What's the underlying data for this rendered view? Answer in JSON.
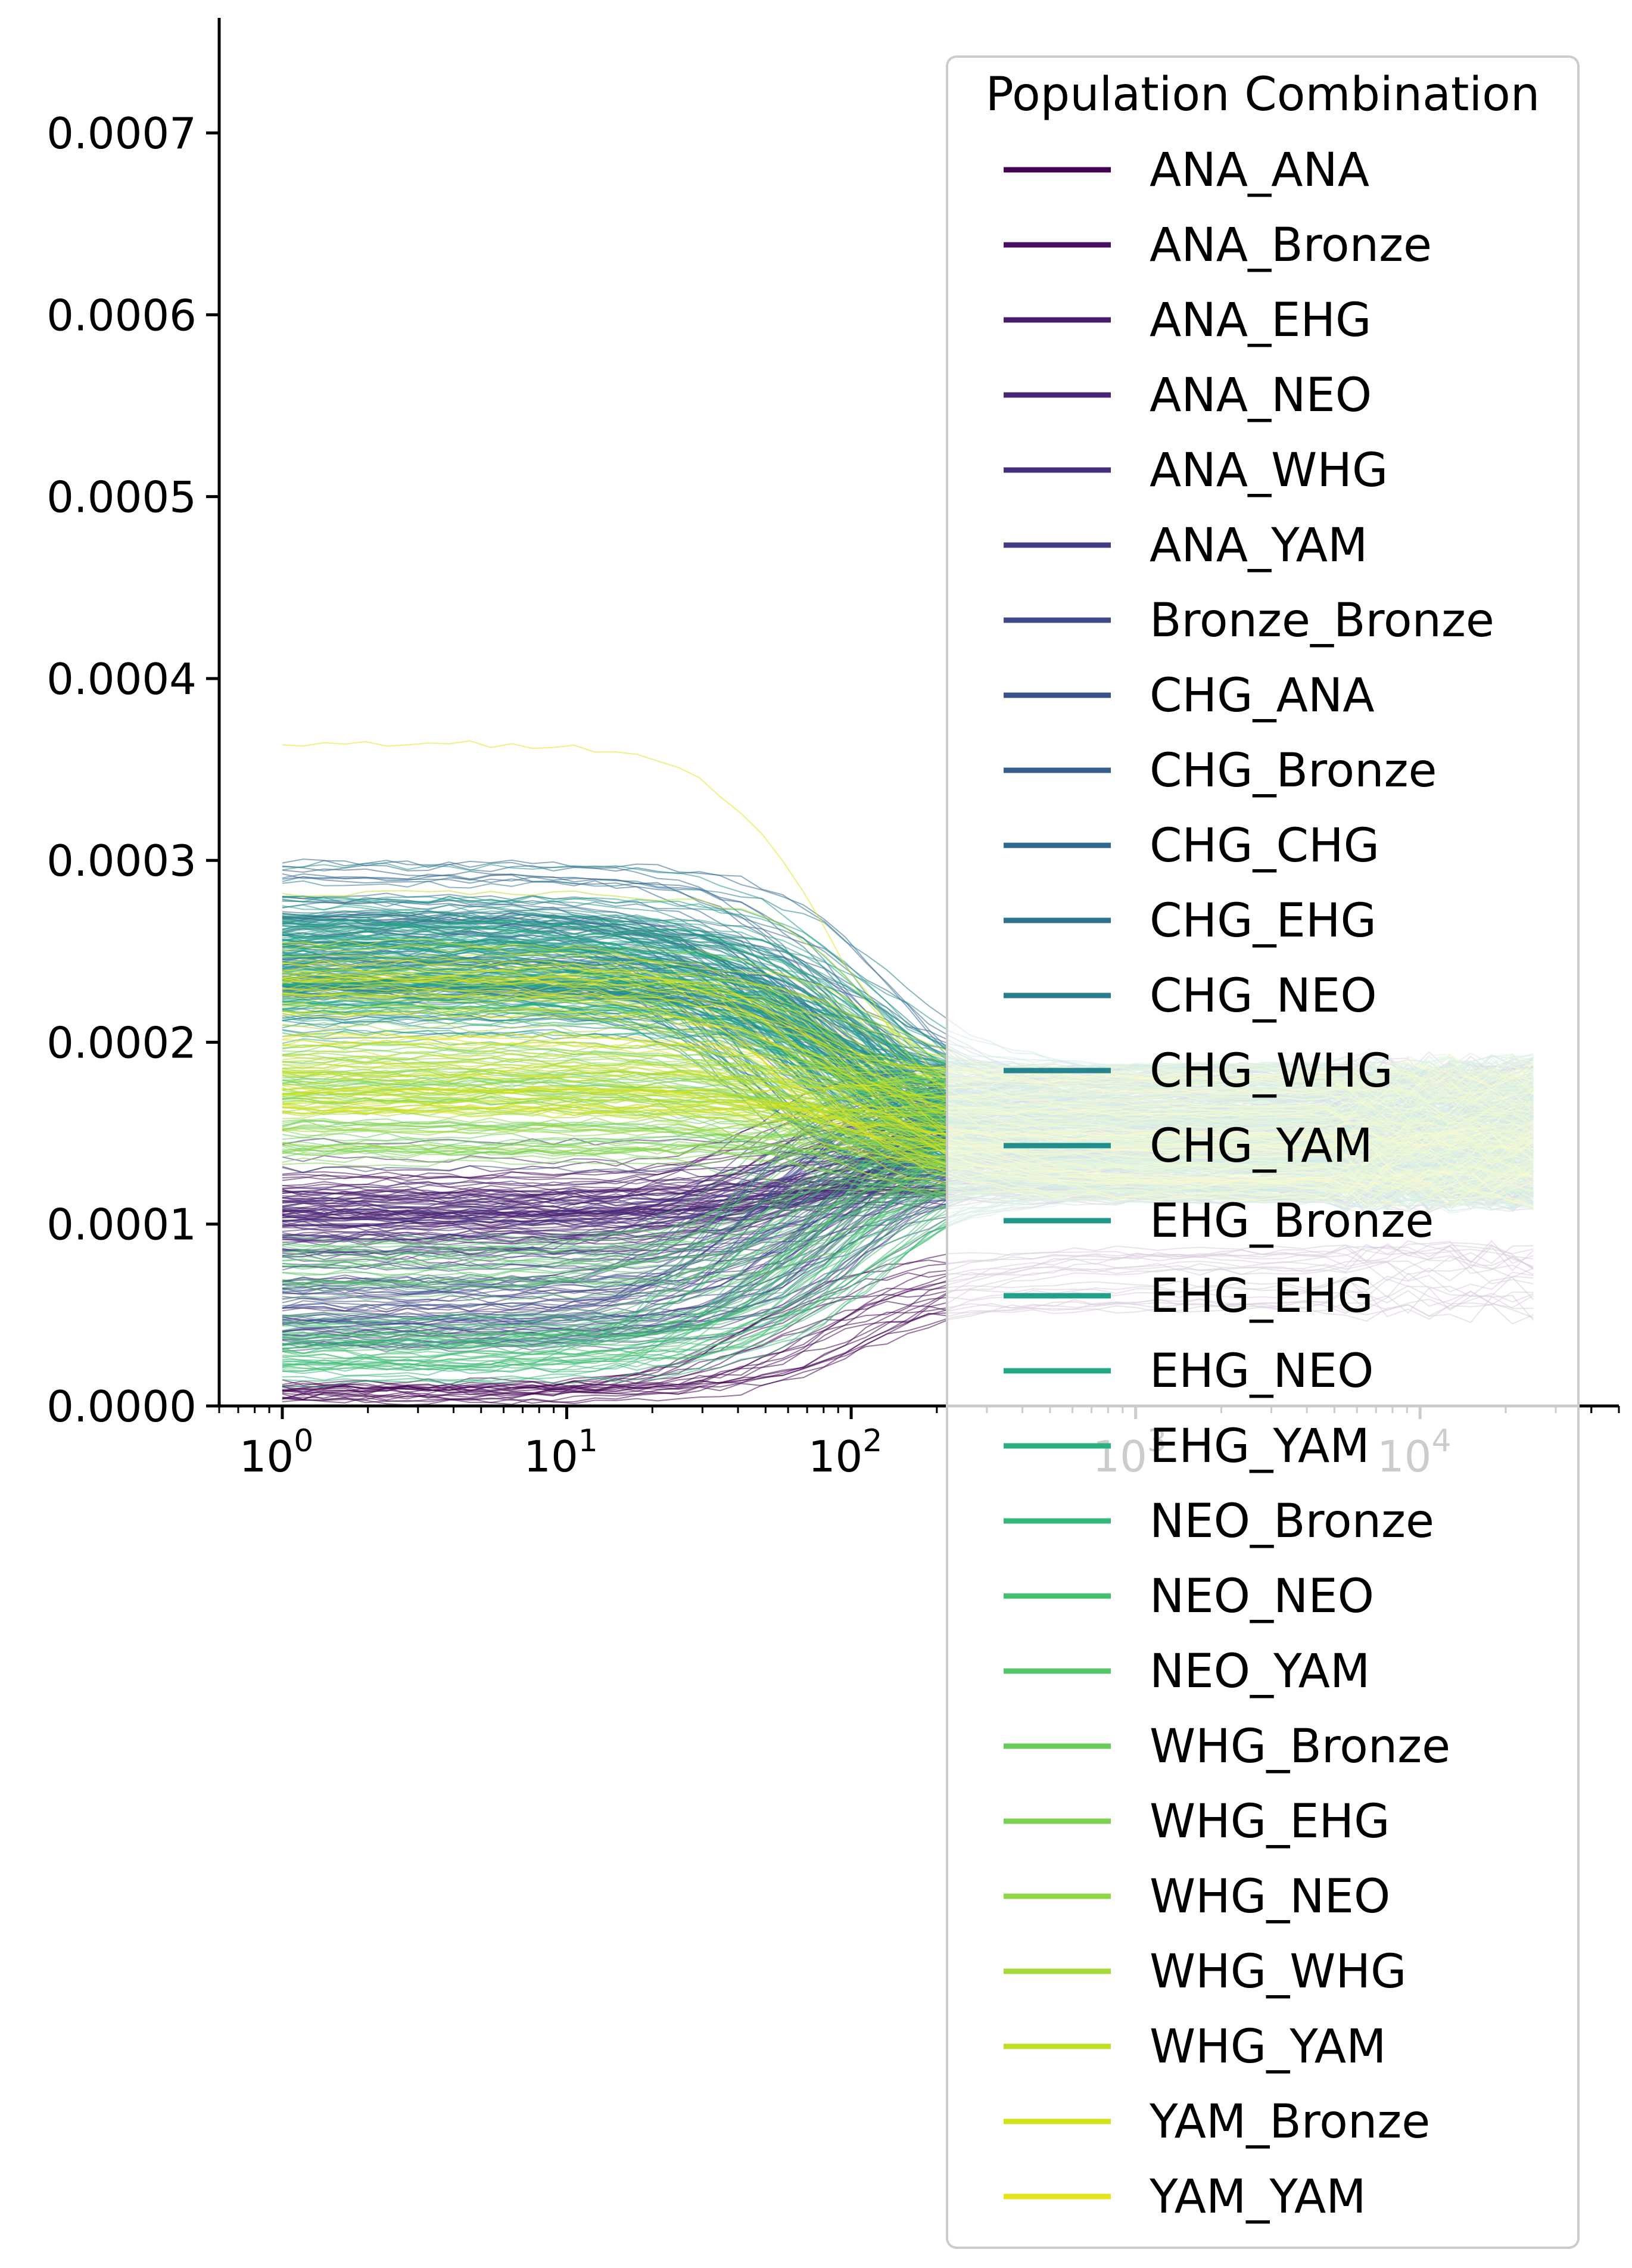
{
  "chart_data": {
    "type": "line",
    "title": "",
    "xlabel": "",
    "ylabel": "",
    "x_scale": "log",
    "xlim": [
      0.6,
      50000
    ],
    "ylim": [
      0,
      0.00076
    ],
    "grid": false,
    "x_tick_labels": [
      "10^0",
      "10^1",
      "10^2",
      "10^3",
      "10^4"
    ],
    "x_ticks": [
      1,
      10,
      100,
      1000,
      10000
    ],
    "y_ticks": [
      0,
      0.0001,
      0.0002,
      0.0003,
      0.0004,
      0.0005,
      0.0006,
      0.0007
    ],
    "y_tick_labels": [
      "0.0000",
      "0.0001",
      "0.0002",
      "0.0003",
      "0.0004",
      "0.0005",
      "0.0006",
      "0.0007"
    ],
    "legend": {
      "title": "Population Combination",
      "placement": "upper-right"
    },
    "series": [
      {
        "name": "ANA_ANA",
        "color": "#440154",
        "band": [
          2e-06,
          1.2e-05
        ],
        "end": 7e-05
      },
      {
        "name": "ANA_Bronze",
        "color": "#470e61",
        "band": [
          0.0001,
          0.00013
        ],
        "end": 0.00015
      },
      {
        "name": "ANA_EHG",
        "color": "#481b6d",
        "band": [
          9e-05,
          0.00012
        ],
        "end": 0.00015
      },
      {
        "name": "ANA_NEO",
        "color": "#482677",
        "band": [
          9e-05,
          0.00012
        ],
        "end": 0.00015
      },
      {
        "name": "ANA_WHG",
        "color": "#46307e",
        "band": [
          8e-05,
          0.00011
        ],
        "end": 0.00015
      },
      {
        "name": "ANA_YAM",
        "color": "#433d84",
        "band": [
          3e-05,
          9e-05
        ],
        "end": 0.00015
      },
      {
        "name": "Bronze_Bronze",
        "color": "#3f4889",
        "band": [
          3e-05,
          8e-05
        ],
        "end": 0.00015
      },
      {
        "name": "CHG_ANA",
        "color": "#3a528b",
        "band": [
          4e-05,
          9e-05
        ],
        "end": 0.00015
      },
      {
        "name": "CHG_Bronze",
        "color": "#355e8d",
        "band": [
          0.00022,
          0.00028
        ],
        "end": 0.00015
      },
      {
        "name": "CHG_CHG",
        "color": "#31688e",
        "band": [
          0.00024,
          0.0003
        ],
        "end": 0.00015
      },
      {
        "name": "CHG_EHG",
        "color": "#2d718e",
        "band": [
          0.00022,
          0.00027
        ],
        "end": 0.00015
      },
      {
        "name": "CHG_NEO",
        "color": "#297b8e",
        "band": [
          0.00022,
          0.00026
        ],
        "end": 0.00015
      },
      {
        "name": "CHG_WHG",
        "color": "#25848e",
        "band": [
          0.0002,
          0.00025
        ],
        "end": 0.00015
      },
      {
        "name": "CHG_YAM",
        "color": "#218e8d",
        "band": [
          0.00021,
          0.00026
        ],
        "end": 0.00015
      },
      {
        "name": "EHG_Bronze",
        "color": "#1f978b",
        "band": [
          0.00022,
          0.00027
        ],
        "end": 0.00015
      },
      {
        "name": "EHG_EHG",
        "color": "#1fa088",
        "band": [
          0.00022,
          0.00028
        ],
        "end": 0.00015
      },
      {
        "name": "EHG_NEO",
        "color": "#22a884",
        "band": [
          0.00021,
          0.00027
        ],
        "end": 0.00015
      },
      {
        "name": "EHG_YAM",
        "color": "#2ab07f",
        "band": [
          0.0002,
          0.00026
        ],
        "end": 0.00015
      },
      {
        "name": "NEO_Bronze",
        "color": "#35b779",
        "band": [
          1e-05,
          4e-05
        ],
        "end": 0.00015
      },
      {
        "name": "NEO_NEO",
        "color": "#44bf70",
        "band": [
          2e-05,
          5e-05
        ],
        "end": 0.00015
      },
      {
        "name": "NEO_YAM",
        "color": "#54c568",
        "band": [
          6e-05,
          9e-05
        ],
        "end": 0.00015
      },
      {
        "name": "WHG_Bronze",
        "color": "#67cc5c",
        "band": [
          0.00014,
          0.0002
        ],
        "end": 0.00015
      },
      {
        "name": "WHG_EHG",
        "color": "#7ad151",
        "band": [
          0.00012,
          0.00018
        ],
        "end": 0.00015
      },
      {
        "name": "WHG_NEO",
        "color": "#8fd744",
        "band": [
          0.00014,
          0.0002
        ],
        "end": 0.00015
      },
      {
        "name": "WHG_WHG",
        "color": "#a5db36",
        "band": [
          0.00015,
          0.00023
        ],
        "end": 0.00015
      },
      {
        "name": "WHG_YAM",
        "color": "#bddf26",
        "band": [
          0.00016,
          0.00024
        ],
        "end": 0.00015
      },
      {
        "name": "YAM_Bronze",
        "color": "#d2e21b",
        "band": [
          0.00016,
          0.00025
        ],
        "end": 0.00015
      },
      {
        "name": "YAM_YAM",
        "color": "#e5e419",
        "band": [
          0.00016,
          0.00026
        ],
        "end": 0.00015
      }
    ]
  }
}
